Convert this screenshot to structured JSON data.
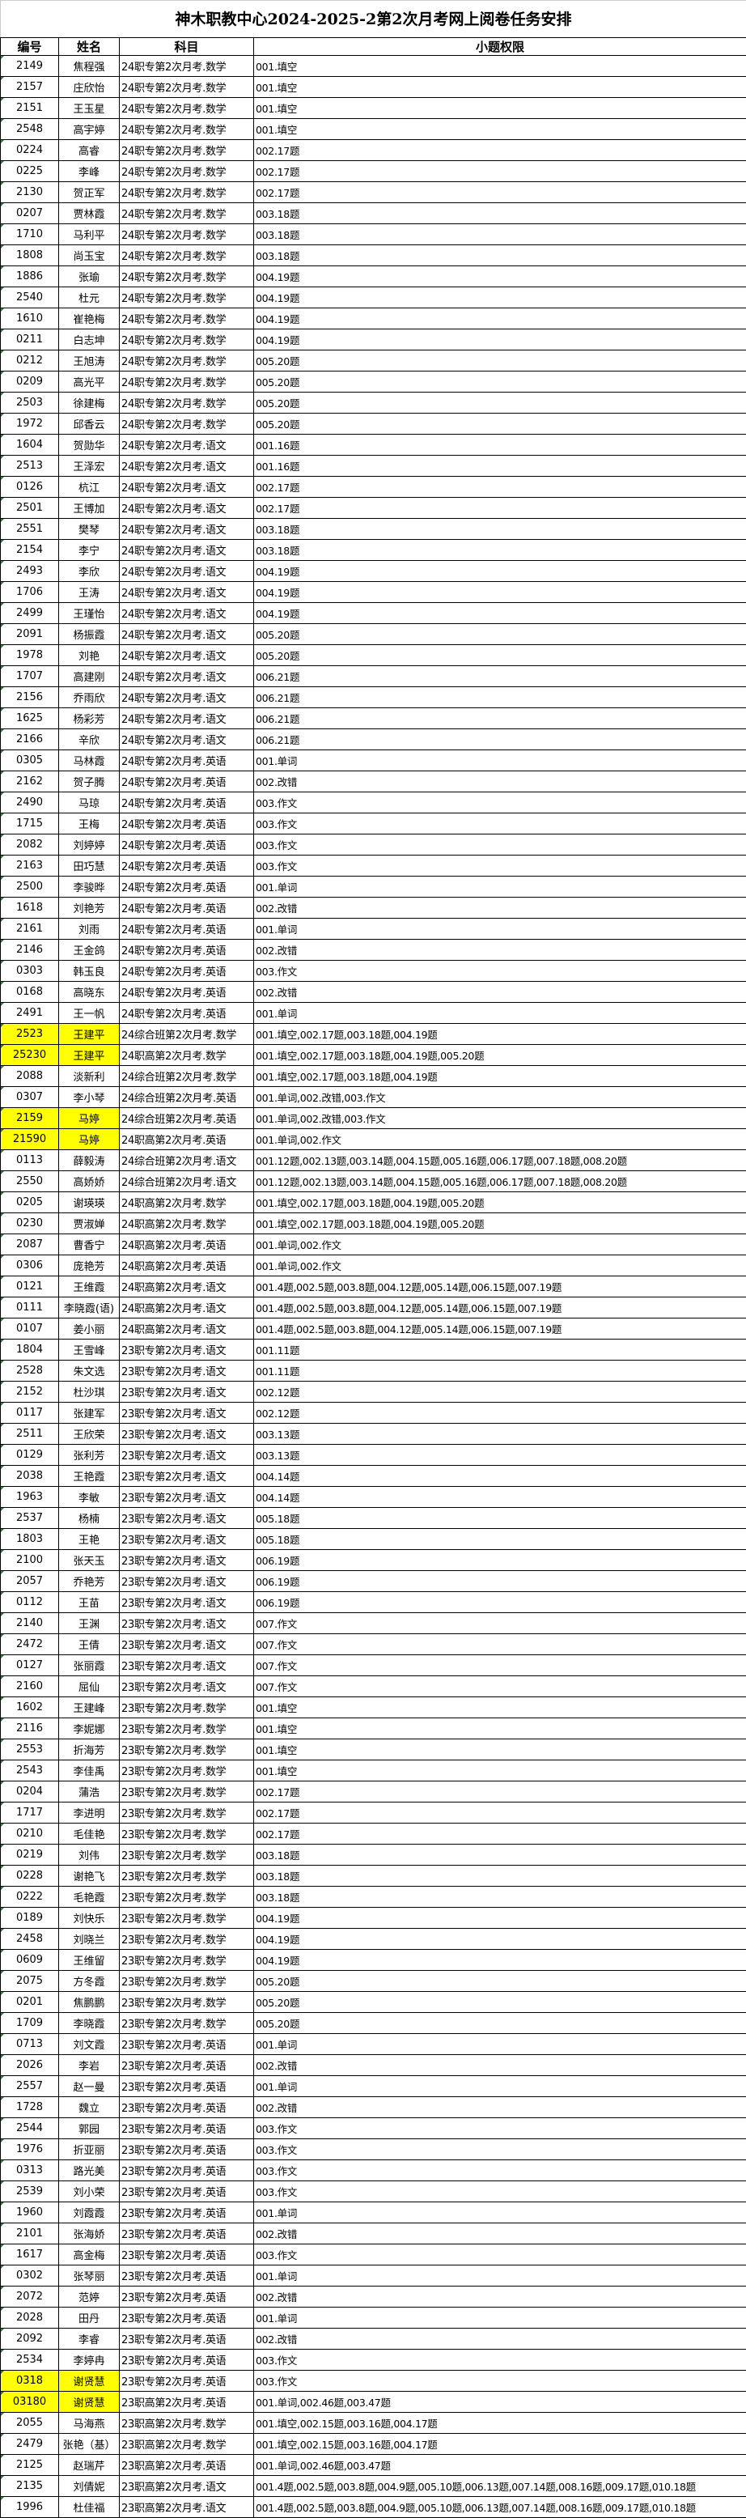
{
  "title": "神木职教中心2024-2025-2第2次月考网上阅卷任务安排",
  "headers": [
    "编号",
    "姓名",
    "科目",
    "小题权限"
  ],
  "highlight_color": "#ffff00",
  "rows": [
    [
      "2149",
      "焦程强",
      "24职专第2次月考.数学",
      "001.填空",
      false
    ],
    [
      "2157",
      "庄欣怡",
      "24职专第2次月考.数学",
      "001.填空",
      false
    ],
    [
      "2151",
      "王玉星",
      "24职专第2次月考.数学",
      "001.填空",
      false
    ],
    [
      "2548",
      "高宇婷",
      "24职专第2次月考.数学",
      "001.填空",
      false
    ],
    [
      "0224",
      "高睿",
      "24职专第2次月考.数学",
      "002.17题",
      false
    ],
    [
      "0225",
      "李峰",
      "24职专第2次月考.数学",
      "002.17题",
      false
    ],
    [
      "2130",
      "贺正军",
      "24职专第2次月考.数学",
      "002.17题",
      false
    ],
    [
      "0207",
      "贾林霞",
      "24职专第2次月考.数学",
      "003.18题",
      false
    ],
    [
      "1710",
      "马利平",
      "24职专第2次月考.数学",
      "003.18题",
      false
    ],
    [
      "1808",
      "尚玉宝",
      "24职专第2次月考.数学",
      "003.18题",
      false
    ],
    [
      "1886",
      "张瑜",
      "24职专第2次月考.数学",
      "004.19题",
      false
    ],
    [
      "2540",
      "杜元",
      "24职专第2次月考.数学",
      "004.19题",
      false
    ],
    [
      "1610",
      "崔艳梅",
      "24职专第2次月考.数学",
      "004.19题",
      false
    ],
    [
      "0211",
      "白志坤",
      "24职专第2次月考.数学",
      "004.19题",
      false
    ],
    [
      "0212",
      "王旭涛",
      "24职专第2次月考.数学",
      "005.20题",
      false
    ],
    [
      "0209",
      "高光平",
      "24职专第2次月考.数学",
      "005.20题",
      false
    ],
    [
      "2503",
      "徐建梅",
      "24职专第2次月考.数学",
      "005.20题",
      false
    ],
    [
      "1972",
      "邱香云",
      "24职专第2次月考.数学",
      "005.20题",
      false
    ],
    [
      "1604",
      "贺勋华",
      "24职专第2次月考.语文",
      "001.16题",
      false
    ],
    [
      "2513",
      "王泽宏",
      "24职专第2次月考.语文",
      "001.16题",
      false
    ],
    [
      "0126",
      "杭江",
      "24职专第2次月考.语文",
      "002.17题",
      false
    ],
    [
      "2501",
      "王博加",
      "24职专第2次月考.语文",
      "002.17题",
      false
    ],
    [
      "2551",
      "樊琴",
      "24职专第2次月考.语文",
      "003.18题",
      false
    ],
    [
      "2154",
      "李宁",
      "24职专第2次月考.语文",
      "003.18题",
      false
    ],
    [
      "2493",
      "李欣",
      "24职专第2次月考.语文",
      "004.19题",
      false
    ],
    [
      "1706",
      "王涛",
      "24职专第2次月考.语文",
      "004.19题",
      false
    ],
    [
      "2499",
      "王瑾怡",
      "24职专第2次月考.语文",
      "004.19题",
      false
    ],
    [
      "2091",
      "杨振霞",
      "24职专第2次月考.语文",
      "005.20题",
      false
    ],
    [
      "1978",
      "刘艳",
      "24职专第2次月考.语文",
      "005.20题",
      false
    ],
    [
      "1707",
      "高建刚",
      "24职专第2次月考.语文",
      "006.21题",
      false
    ],
    [
      "2156",
      "乔雨欣",
      "24职专第2次月考.语文",
      "006.21题",
      false
    ],
    [
      "1625",
      "杨彩芳",
      "24职专第2次月考.语文",
      "006.21题",
      false
    ],
    [
      "2166",
      "辛欣",
      "24职专第2次月考.语文",
      "006.21题",
      false
    ],
    [
      "0305",
      "马林霞",
      "24职专第2次月考.英语",
      "001.单词",
      false
    ],
    [
      "2162",
      "贺子腾",
      "24职专第2次月考.英语",
      "002.改错",
      false
    ],
    [
      "2490",
      "马琼",
      "24职专第2次月考.英语",
      "003.作文",
      false
    ],
    [
      "1715",
      "王梅",
      "24职专第2次月考.英语",
      "003.作文",
      false
    ],
    [
      "2082",
      "刘婷婷",
      "24职专第2次月考.英语",
      "003.作文",
      false
    ],
    [
      "2163",
      "田巧慧",
      "24职专第2次月考.英语",
      "003.作文",
      false
    ],
    [
      "2500",
      "李骏晔",
      "24职专第2次月考.英语",
      "001.单词",
      false
    ],
    [
      "1618",
      "刘艳芳",
      "24职专第2次月考.英语",
      "002.改错",
      false
    ],
    [
      "2161",
      "刘雨",
      "24职专第2次月考.英语",
      "001.单词",
      false
    ],
    [
      "2146",
      "王金鸽",
      "24职专第2次月考.英语",
      "002.改错",
      false
    ],
    [
      "0303",
      "韩玉良",
      "24职专第2次月考.英语",
      "003.作文",
      false
    ],
    [
      "0168",
      "高晓东",
      "24职专第2次月考.英语",
      "002.改错",
      false
    ],
    [
      "2491",
      "王一帆",
      "24职专第2次月考.英语",
      "001.单词",
      false
    ],
    [
      "2523",
      "王建平",
      "24综合班第2次月考.数学",
      "001.填空,002.17题,003.18题,004.19题",
      true
    ],
    [
      "25230",
      "王建平",
      "24职高第2次月考.数学",
      "001.填空,002.17题,003.18题,004.19题,005.20题",
      true
    ],
    [
      "2088",
      "淡新利",
      "24综合班第2次月考.数学",
      "001.填空,002.17题,003.18题,004.19题",
      false
    ],
    [
      "0307",
      "李小琴",
      "24综合班第2次月考.英语",
      "001.单词,002.改错,003.作文",
      false
    ],
    [
      "2159",
      "马婷",
      "24综合班第2次月考.英语",
      "001.单词,002.改错,003.作文",
      true
    ],
    [
      "21590",
      "马婷",
      "24职高第2次月考.英语",
      "001.单词,002.作文",
      true
    ],
    [
      "0113",
      "薛毅涛",
      "24综合班第2次月考.语文",
      "001.12题,002.13题,003.14题,004.15题,005.16题,006.17题,007.18题,008.20题",
      false
    ],
    [
      "2550",
      "高娇娇",
      "24综合班第2次月考.语文",
      "001.12题,002.13题,003.14题,004.15题,005.16题,006.17题,007.18题,008.20题",
      false
    ],
    [
      "0205",
      "谢瑛瑛",
      "24职高第2次月考.数学",
      "001.填空,002.17题,003.18题,004.19题,005.20题",
      false
    ],
    [
      "0230",
      "贾淑婵",
      "24职高第2次月考.数学",
      "001.填空,002.17题,003.18题,004.19题,005.20题",
      false
    ],
    [
      "2087",
      "曹香宁",
      "24职高第2次月考.英语",
      "001.单词,002.作文",
      false
    ],
    [
      "0306",
      "庞艳芳",
      "24职高第2次月考.英语",
      "001.单词,002.作文",
      false
    ],
    [
      "0121",
      "王维霞",
      "24职高第2次月考.语文",
      "001.4题,002.5题,003.8题,004.12题,005.14题,006.15题,007.19题",
      false
    ],
    [
      "0111",
      "李晓霞(语)",
      "24职高第2次月考.语文",
      "001.4题,002.5题,003.8题,004.12题,005.14题,006.15题,007.19题",
      false
    ],
    [
      "0107",
      "姜小丽",
      "24职高第2次月考.语文",
      "001.4题,002.5题,003.8题,004.12题,005.14题,006.15题,007.19题",
      false
    ],
    [
      "1804",
      "王雪峰",
      "23职专第2次月考.语文",
      "001.11题",
      false
    ],
    [
      "2528",
      "朱文选",
      "23职专第2次月考.语文",
      "001.11题",
      false
    ],
    [
      "2152",
      "杜沙琪",
      "23职专第2次月考.语文",
      "002.12题",
      false
    ],
    [
      "0117",
      "张建军",
      "23职专第2次月考.语文",
      "002.12题",
      false
    ],
    [
      "2511",
      "王欣荣",
      "23职专第2次月考.语文",
      "003.13题",
      false
    ],
    [
      "0129",
      "张利芳",
      "23职专第2次月考.语文",
      "003.13题",
      false
    ],
    [
      "2038",
      "王艳霞",
      "23职专第2次月考.语文",
      "004.14题",
      false
    ],
    [
      "1963",
      "李敏",
      "23职专第2次月考.语文",
      "004.14题",
      false
    ],
    [
      "2537",
      "杨楠",
      "23职专第2次月考.语文",
      "005.18题",
      false
    ],
    [
      "1803",
      "王艳",
      "23职专第2次月考.语文",
      "005.18题",
      false
    ],
    [
      "2100",
      "张天玉",
      "23职专第2次月考.语文",
      "006.19题",
      false
    ],
    [
      "2057",
      "乔艳芳",
      "23职专第2次月考.语文",
      "006.19题",
      false
    ],
    [
      "0112",
      "王苗",
      "23职专第2次月考.语文",
      "006.19题",
      false
    ],
    [
      "2140",
      "王渊",
      "23职专第2次月考.语文",
      "007.作文",
      false
    ],
    [
      "2472",
      "王倩",
      "23职专第2次月考.语文",
      "007.作文",
      false
    ],
    [
      "0127",
      "张丽霞",
      "23职专第2次月考.语文",
      "007.作文",
      false
    ],
    [
      "2160",
      "屈仙",
      "23职专第2次月考.语文",
      "007.作文",
      false
    ],
    [
      "1602",
      "王建峰",
      "23职专第2次月考.数学",
      "001.填空",
      false
    ],
    [
      "2116",
      "李妮娜",
      "23职专第2次月考.数学",
      "001.填空",
      false
    ],
    [
      "2553",
      "折海芳",
      "23职专第2次月考.数学",
      "001.填空",
      false
    ],
    [
      "2543",
      "李佳禹",
      "23职专第2次月考.数学",
      "001.填空",
      false
    ],
    [
      "0204",
      "蒲浩",
      "23职专第2次月考.数学",
      "002.17题",
      false
    ],
    [
      "1717",
      "李进明",
      "23职专第2次月考.数学",
      "002.17题",
      false
    ],
    [
      "0210",
      "毛佳艳",
      "23职专第2次月考.数学",
      "002.17题",
      false
    ],
    [
      "0219",
      "刘伟",
      "23职专第2次月考.数学",
      "003.18题",
      false
    ],
    [
      "0228",
      "谢艳飞",
      "23职专第2次月考.数学",
      "003.18题",
      false
    ],
    [
      "0222",
      "毛艳霞",
      "23职专第2次月考.数学",
      "003.18题",
      false
    ],
    [
      "0189",
      "刘快乐",
      "23职专第2次月考.数学",
      "004.19题",
      false
    ],
    [
      "2458",
      "刘晓兰",
      "23职专第2次月考.数学",
      "004.19题",
      false
    ],
    [
      "0609",
      "王维留",
      "23职专第2次月考.数学",
      "004.19题",
      false
    ],
    [
      "2075",
      "方冬霞",
      "23职专第2次月考.数学",
      "005.20题",
      false
    ],
    [
      "0201",
      "焦鹏鹏",
      "23职专第2次月考.数学",
      "005.20题",
      false
    ],
    [
      "1709",
      "李晓霞",
      "23职专第2次月考.数学",
      "005.20题",
      false
    ],
    [
      "0713",
      "刘文霞",
      "23职专第2次月考.英语",
      "001.单词",
      false
    ],
    [
      "2026",
      "李岩",
      "23职专第2次月考.英语",
      "002.改错",
      false
    ],
    [
      "2557",
      "赵一曼",
      "23职专第2次月考.英语",
      "001.单词",
      false
    ],
    [
      "1728",
      "魏立",
      "23职专第2次月考.英语",
      "002.改错",
      false
    ],
    [
      "2544",
      "郭园",
      "23职专第2次月考.英语",
      "003.作文",
      false
    ],
    [
      "1976",
      "折亚丽",
      "23职专第2次月考.英语",
      "003.作文",
      false
    ],
    [
      "0313",
      "路光美",
      "23职专第2次月考.英语",
      "003.作文",
      false
    ],
    [
      "2539",
      "刘小荣",
      "23职专第2次月考.英语",
      "003.作文",
      false
    ],
    [
      "1960",
      "刘霞霞",
      "23职专第2次月考.英语",
      "001.单词",
      false
    ],
    [
      "2101",
      "张海娇",
      "23职专第2次月考.英语",
      "002.改错",
      false
    ],
    [
      "1617",
      "高金梅",
      "23职专第2次月考.英语",
      "003.作文",
      false
    ],
    [
      "0302",
      "张琴丽",
      "23职专第2次月考.英语",
      "001.单词",
      false
    ],
    [
      "2072",
      "范婷",
      "23职专第2次月考.英语",
      "002.改错",
      false
    ],
    [
      "2028",
      "田丹",
      "23职专第2次月考.英语",
      "001.单词",
      false
    ],
    [
      "2092",
      "李睿",
      "23职专第2次月考.英语",
      "002.改错",
      false
    ],
    [
      "2534",
      "李婷冉",
      "23职专第2次月考.英语",
      "003.作文",
      false
    ],
    [
      "0318",
      "谢贤慧",
      "23职专第2次月考.英语",
      "003.作文",
      true
    ],
    [
      "03180",
      "谢贤慧",
      "23职高第2次月考.英语",
      "001.单词,002.46题,003.47题",
      true
    ],
    [
      "2055",
      "马海燕",
      "23职高第2次月考.数学",
      "001.填空,002.15题,003.16题,004.17题",
      false
    ],
    [
      "2479",
      "张艳（基）",
      "23职高第2次月考.数学",
      "001.填空,002.15题,003.16题,004.17题",
      false
    ],
    [
      "2125",
      "赵瑞芹",
      "23职高第2次月考.英语",
      "001.单词,002.46题,003.47题",
      false
    ],
    [
      "2135",
      "刘倩妮",
      "23职高第2次月考.语文",
      "001.4题,002.5题,003.8题,004.9题,005.10题,006.13题,007.14题,008.16题,009.17题,010.18题",
      false
    ],
    [
      "1996",
      "杜佳福",
      "23职高第2次月考.语文",
      "001.4题,002.5题,003.8题,004.9题,005.10题,006.13题,007.14题,008.16题,009.17题,010.18题",
      false
    ]
  ]
}
